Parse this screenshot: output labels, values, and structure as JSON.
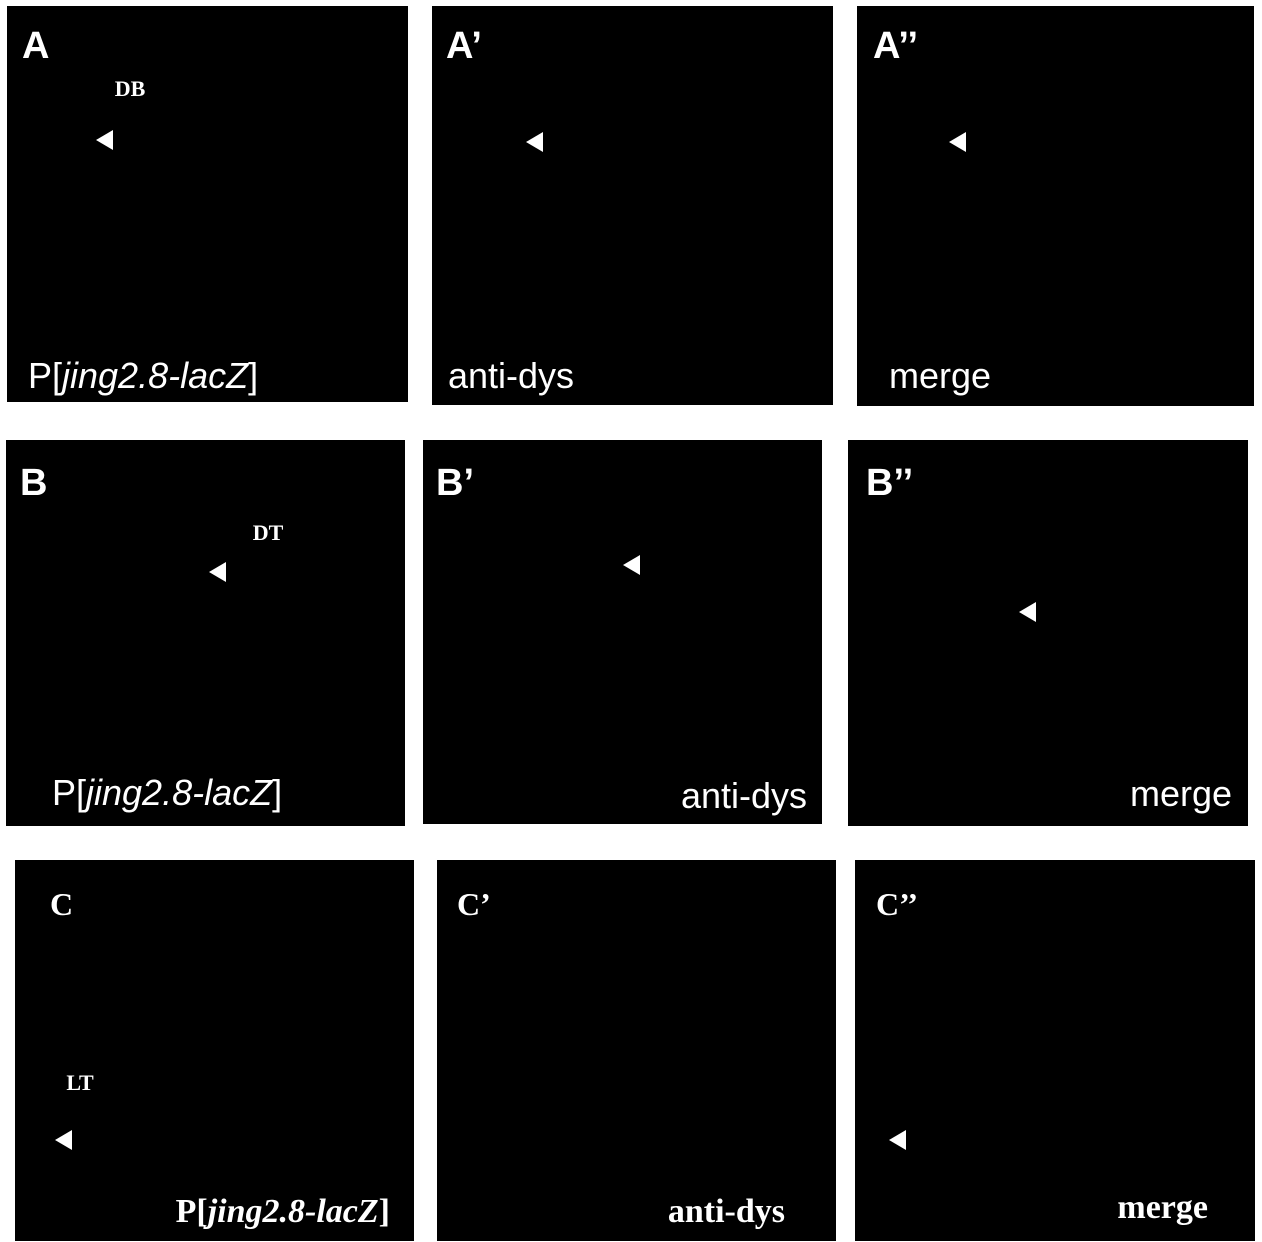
{
  "panels": [
    {
      "letter": "A",
      "caption": [
        "P[",
        "jing2.8-lacZ",
        "]"
      ],
      "annotation": "DB"
    },
    {
      "letter": "A’",
      "caption": [
        "anti-dys"
      ]
    },
    {
      "letter": "A’’",
      "caption": [
        "merge"
      ]
    },
    {
      "letter": "B",
      "caption": [
        "P[",
        "jing2.8-lacZ",
        "]"
      ],
      "annotation": "DT"
    },
    {
      "letter": "B’",
      "caption": [
        "anti-dys"
      ]
    },
    {
      "letter": "B’’",
      "caption": [
        "merge"
      ]
    },
    {
      "letter": "C",
      "caption": [
        "P[",
        "jing2.8-lacZ",
        "]"
      ],
      "annotation": "LT"
    },
    {
      "letter": "C’",
      "caption": [
        "anti-dys"
      ]
    },
    {
      "letter": "C’’",
      "caption": [
        "merge"
      ]
    }
  ]
}
